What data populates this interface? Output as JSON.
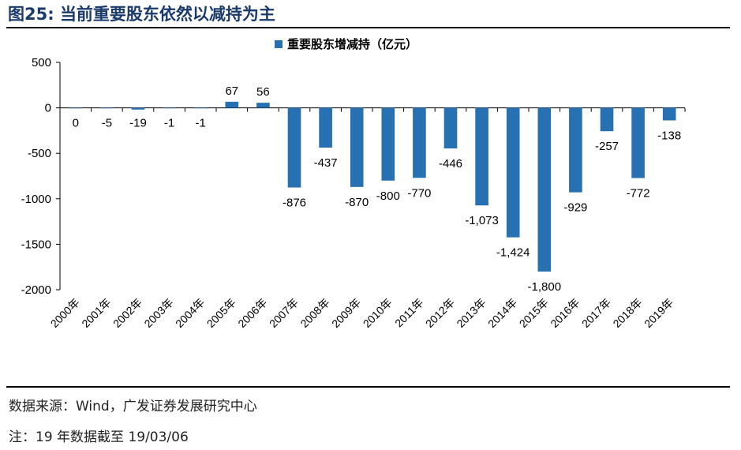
{
  "figure": {
    "label": "图25:",
    "title": "当前重要股东依然以减持为主"
  },
  "source_text": "数据来源：Wind，广发证券发展研究中心",
  "note_text": "注：19 年数据截至 19/03/06",
  "colors": {
    "bar": "#2771b3",
    "title": "#1a3a6b"
  },
  "chart_data": {
    "type": "bar",
    "title": "",
    "xlabel": "",
    "ylabel": "",
    "ylim": [
      -2000,
      500
    ],
    "yticks": [
      500,
      0,
      -500,
      -1000,
      -1500,
      -2000
    ],
    "ytick_labels": [
      "500",
      "0",
      "-500",
      "-1000",
      "-1500",
      "-2000"
    ],
    "legend": {
      "label": "重要股东增减持（亿元）",
      "position": "top-center"
    },
    "categories": [
      "2000年",
      "2001年",
      "2002年",
      "2003年",
      "2004年",
      "2005年",
      "2006年",
      "2007年",
      "2008年",
      "2009年",
      "2010年",
      "2011年",
      "2012年",
      "2013年",
      "2014年",
      "2015年",
      "2016年",
      "2017年",
      "2018年",
      "2019年"
    ],
    "values": [
      0,
      -5,
      -19,
      -1,
      -1,
      67,
      56,
      -876,
      -437,
      -870,
      -800,
      -770,
      -446,
      -1073,
      -1424,
      -1800,
      -929,
      -257,
      -772,
      -138
    ],
    "value_labels": [
      "0",
      "-5",
      "-19",
      "-1",
      "-1",
      "67",
      "56",
      "-876",
      "-437",
      "-870",
      "-800",
      "-770",
      "-446",
      "-1,073",
      "-1,424",
      "-1,800",
      "-929",
      "-257",
      "-772",
      "-138"
    ]
  }
}
